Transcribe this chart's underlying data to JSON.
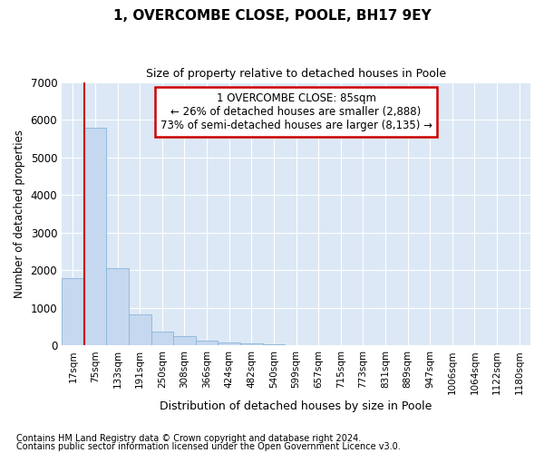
{
  "title": "1, OVERCOMBE CLOSE, POOLE, BH17 9EY",
  "subtitle": "Size of property relative to detached houses in Poole",
  "xlabel": "Distribution of detached houses by size in Poole",
  "ylabel": "Number of detached properties",
  "categories": [
    "17sqm",
    "75sqm",
    "133sqm",
    "191sqm",
    "250sqm",
    "308sqm",
    "366sqm",
    "424sqm",
    "482sqm",
    "540sqm",
    "599sqm",
    "657sqm",
    "715sqm",
    "773sqm",
    "831sqm",
    "889sqm",
    "947sqm",
    "1006sqm",
    "1064sqm",
    "1122sqm",
    "1180sqm"
  ],
  "values": [
    1800,
    5780,
    2060,
    840,
    370,
    240,
    140,
    90,
    70,
    40,
    0,
    0,
    0,
    0,
    0,
    0,
    0,
    0,
    0,
    0,
    0
  ],
  "bar_color": "#c5d8f0",
  "bar_edge_color": "#8ab4d8",
  "vline_color": "#cc0000",
  "vline_x": 1,
  "annotation_text": "1 OVERCOMBE CLOSE: 85sqm\n← 26% of detached houses are smaller (2,888)\n73% of semi-detached houses are larger (8,135) →",
  "annotation_box_edgecolor": "#cc0000",
  "ylim": [
    0,
    7000
  ],
  "yticks": [
    0,
    1000,
    2000,
    3000,
    4000,
    5000,
    6000,
    7000
  ],
  "background_color": "#ffffff",
  "plot_bg_color": "#dce8f5",
  "grid_color": "#ffffff",
  "footnote1": "Contains HM Land Registry data © Crown copyright and database right 2024.",
  "footnote2": "Contains public sector information licensed under the Open Government Licence v3.0."
}
